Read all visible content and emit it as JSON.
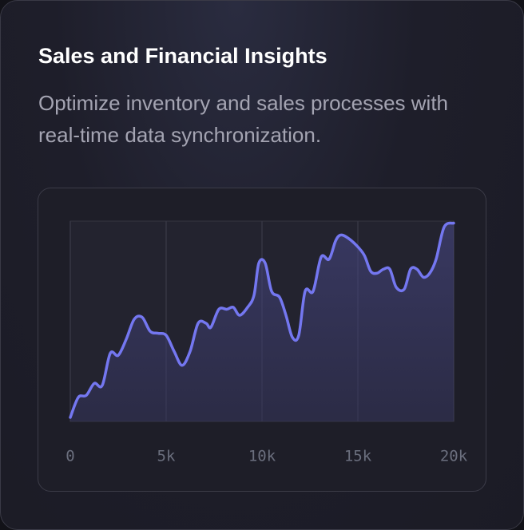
{
  "header": {
    "title": "Sales and Financial Insights",
    "subtitle": "Optimize inventory and sales processes with real-time data synchronization."
  },
  "chart_data": {
    "type": "line",
    "x": [
      0,
      417,
      833,
      1250,
      1667,
      2083,
      2500,
      2917,
      3333,
      3750,
      4167,
      4583,
      5000,
      5417,
      5833,
      6250,
      6667,
      7083,
      7333,
      7750,
      8167,
      8500,
      8833,
      9250,
      9583,
      9833,
      10167,
      10500,
      10917,
      11250,
      11583,
      11917,
      12250,
      12667,
      13083,
      13500,
      13833,
      14083,
      14417,
      14917,
      15333,
      15667,
      16000,
      16333,
      16667,
      17000,
      17417,
      17750,
      18083,
      18417,
      18750,
      19083,
      19500,
      20000
    ],
    "series": [
      {
        "color": "#7477f0",
        "values": [
          2,
          12,
          13,
          19,
          18,
          34,
          33,
          41,
          51,
          52,
          45,
          44,
          43,
          35,
          28,
          35,
          49,
          49,
          47,
          56,
          56,
          57,
          53,
          57,
          63,
          79,
          79,
          65,
          62,
          53,
          42,
          43,
          65,
          65,
          82,
          81,
          90,
          93,
          92,
          88,
          83,
          75,
          74,
          76,
          76,
          67,
          66,
          76,
          76,
          72,
          74,
          81,
          97,
          99
        ]
      }
    ],
    "xlim": [
      0,
      20000
    ],
    "ylim": [
      0,
      100
    ],
    "xticks": [
      0,
      {
        "value": 5000,
        "label": "5k"
      },
      {
        "value": 10000,
        "label": "10k"
      },
      {
        "value": 15000,
        "label": "15k"
      },
      {
        "value": 20000,
        "label": "20k"
      }
    ],
    "grid": true
  }
}
